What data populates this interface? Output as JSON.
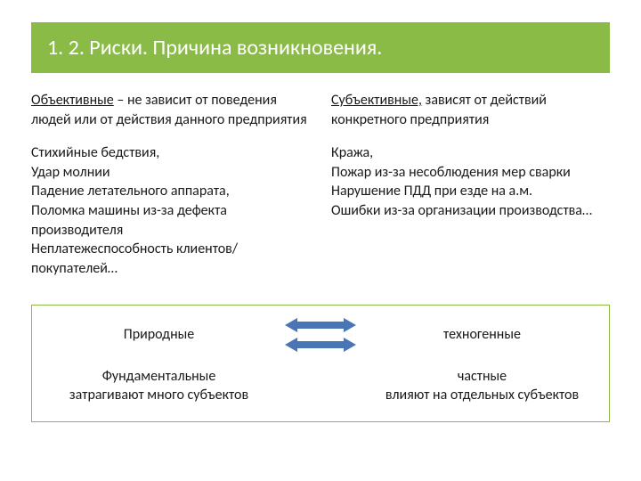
{
  "title": "1. 2. Риски. Причина возникновения.",
  "table": {
    "left": {
      "header_bold": "Объективные",
      "header_rest": " – не зависит от поведения людей или от действия данного предприятия",
      "body": "Стихийные бедствия,\nУдар молнии\nПадение летательного аппарата,\nПоломка машины из-за дефекта производителя\nНеплатежеспособность клиентов/покупателей…"
    },
    "right": {
      "header_bold": "Субъективные,",
      "header_rest": " зависят от действий конкретного предприятия",
      "body": "Кража,\nПожар из-за несоблюдения мер сварки\nНарушение ПДД при езде на а.м.\nОшибки из-за организации производства…"
    }
  },
  "bottom": {
    "row1": {
      "left": "Природные",
      "right": "техногенные"
    },
    "row2": {
      "left": "Фундаментальные\nзатрагивают много субъектов",
      "right": "частные\nвлияют на отдельных субъектов"
    }
  },
  "colors": {
    "green": "#8bbb47",
    "arrow": "#4974b5",
    "text": "#1a1a1a"
  }
}
